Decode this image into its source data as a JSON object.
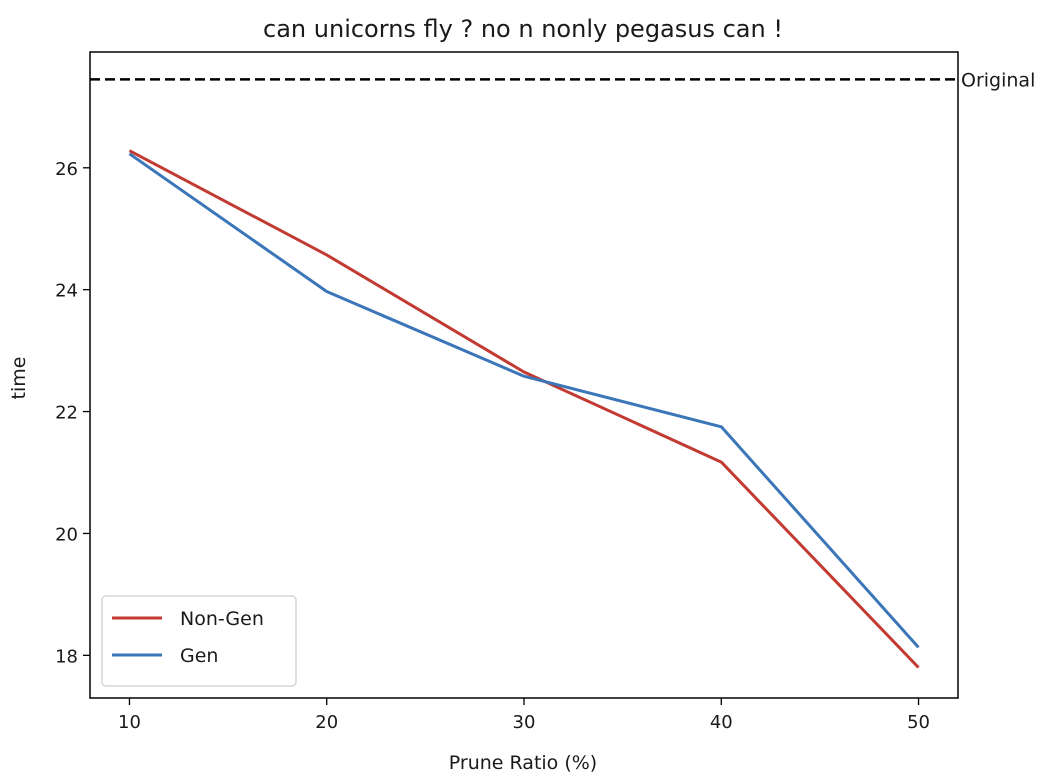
{
  "chart_data": {
    "type": "line",
    "title": "can unicorns fly ? no n nonly pegasus can !",
    "xlabel": "Prune Ratio (%)",
    "ylabel": "time",
    "x": [
      10,
      20,
      30,
      40,
      50
    ],
    "xticks": [
      10,
      20,
      30,
      40,
      50
    ],
    "yticks": [
      18,
      20,
      22,
      24,
      26
    ],
    "xlim": [
      8,
      52
    ],
    "ylim": [
      17.3,
      27.9
    ],
    "grid": false,
    "legend_position": "lower-left",
    "series": [
      {
        "name": "Non-Gen",
        "color": "#c23b32",
        "values": [
          26.28,
          24.57,
          22.65,
          21.17,
          17.8
        ]
      },
      {
        "name": "Gen",
        "color": "#3b76b8",
        "values": [
          26.23,
          23.97,
          22.58,
          21.75,
          18.13
        ]
      }
    ],
    "reference_line": {
      "label": "Original",
      "value": 27.45,
      "color": "#000000",
      "style": "dashed"
    }
  }
}
